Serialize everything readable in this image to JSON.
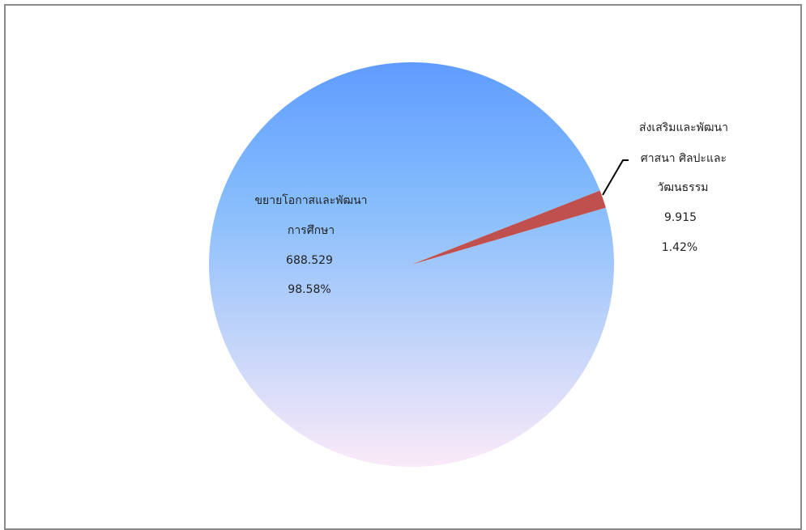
{
  "chart_data": {
    "type": "pie",
    "title": "",
    "slices": [
      {
        "label_lines": [
          "ขยายโอกาสและพัฒนา",
          "การศึกษา"
        ],
        "value_text": "688.529",
        "percent_text": "98.58%",
        "value": 688.529,
        "percent": 98.58,
        "color_top": "#5f9cff",
        "color_bottom": "#fbeaf8"
      },
      {
        "label_lines": [
          "ส่งเสริมและพัฒนา",
          "ศาสนา ศิลปะและ",
          "วัฒนธรรม"
        ],
        "value_text": "9.915",
        "percent_text": "1.42%",
        "value": 9.915,
        "percent": 1.42,
        "color": "#c0504d"
      }
    ]
  }
}
